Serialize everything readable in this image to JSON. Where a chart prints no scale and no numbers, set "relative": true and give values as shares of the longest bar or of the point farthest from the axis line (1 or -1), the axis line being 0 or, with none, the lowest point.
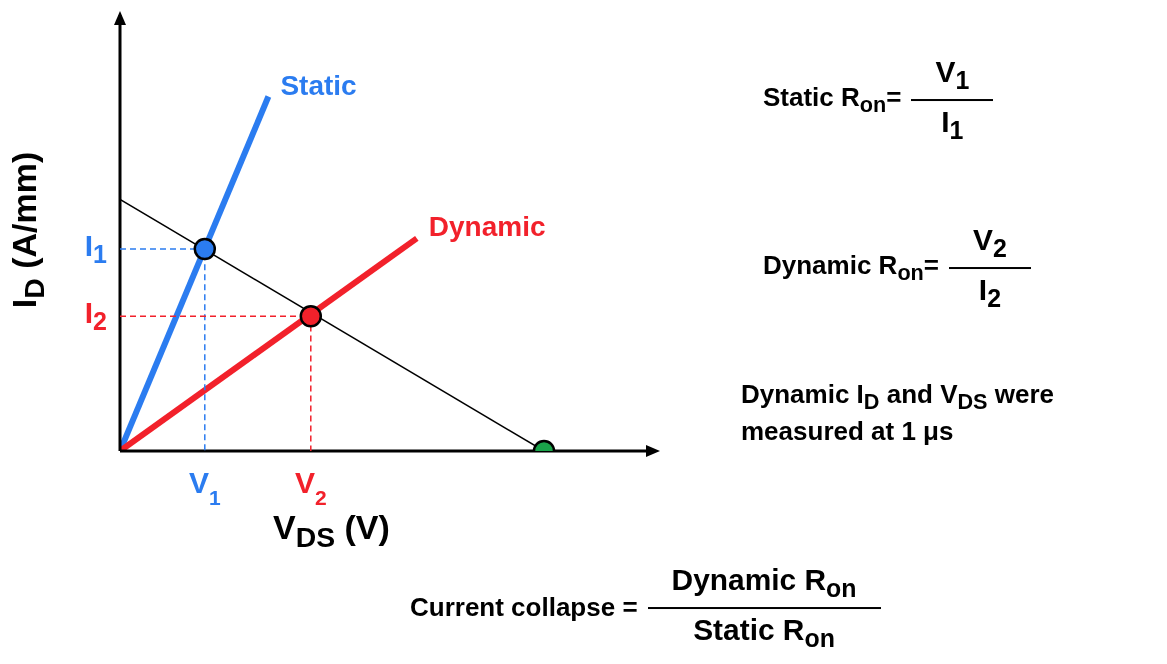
{
  "chart_data": {
    "type": "line",
    "relative": true,
    "xlabel": "V$_{DS}$ (V)",
    "ylabel": "I$_{D}$ (A/mm)",
    "tick_labels": "x",
    "categories": [
      null,
      null,
      null,
      null,
      "V$_{1}$",
      null,
      null,
      null,
      null,
      "V$_{2}$",
      null,
      null,
      null,
      null,
      null,
      null,
      null,
      null,
      null,
      null,
      null,
      null,
      null,
      null,
      null,
      null
    ],
    "legend": false,
    "marker": "none",
    "series": [
      {
        "name": "Static",
        "color": "#2b7cf0",
        "values": [
          0,
          null,
          null,
          null,
          null,
          null,
          null,
          1,
          null,
          null,
          null,
          null,
          null,
          null,
          null,
          null,
          null,
          null,
          null,
          null,
          null,
          null,
          null,
          null,
          null,
          null
        ]
      },
      {
        "name": "Dynamic",
        "color": "#f2212b",
        "values": [
          0,
          null,
          null,
          null,
          null,
          null,
          null,
          null,
          null,
          null,
          null,
          null,
          null,
          null,
          0.6,
          null,
          null,
          null,
          null,
          null,
          null,
          null,
          null,
          null,
          null,
          null
        ]
      },
      {
        "color": "#000000",
        "values": [
          0.71,
          null,
          null,
          null,
          null,
          null,
          null,
          null,
          null,
          null,
          null,
          null,
          null,
          null,
          null,
          null,
          null,
          null,
          null,
          null,
          0,
          null,
          null,
          null,
          null,
          null
        ]
      },
      {
        "type": "scatter",
        "marker": "circle",
        "line_style": "dashed",
        "color": "#2b7cf0",
        "values": [
          null,
          null,
          null,
          null,
          0.57,
          null,
          null,
          null,
          null,
          null,
          null,
          null,
          null,
          null,
          null,
          null,
          null,
          null,
          null,
          null,
          null,
          null,
          null,
          null,
          null,
          null
        ]
      },
      {
        "type": "scatter",
        "marker": "circle",
        "line_style": "dashed",
        "color": "#f2212b",
        "values": [
          null,
          null,
          null,
          null,
          null,
          null,
          null,
          null,
          null,
          0.38,
          null,
          null,
          null,
          null,
          null,
          null,
          null,
          null,
          null,
          null,
          null,
          null,
          null,
          null,
          null,
          null
        ]
      },
      {
        "type": "scatter",
        "marker": "circle",
        "color": "#1aa34a",
        "values": [
          null,
          null,
          null,
          null,
          null,
          null,
          null,
          null,
          null,
          null,
          null,
          null,
          null,
          null,
          null,
          null,
          null,
          null,
          null,
          null,
          0,
          null,
          null,
          null,
          null,
          null
        ]
      }
    ],
    "annotations": [
      "I$_{1}$",
      "I$_{2}$",
      "Static R$_{on}$=",
      "V$_{1}$",
      "I$_{1}$",
      "Dynamic R$_{on}$=",
      "V$_{2}$",
      "I$_{2}$",
      "Dynamic  I$_{D}$ and V$_{DS}$ were measured at 1 μs",
      "Current collapse =",
      "Dynamic R$_{on}$",
      "Static R$_{on}$"
    ]
  }
}
